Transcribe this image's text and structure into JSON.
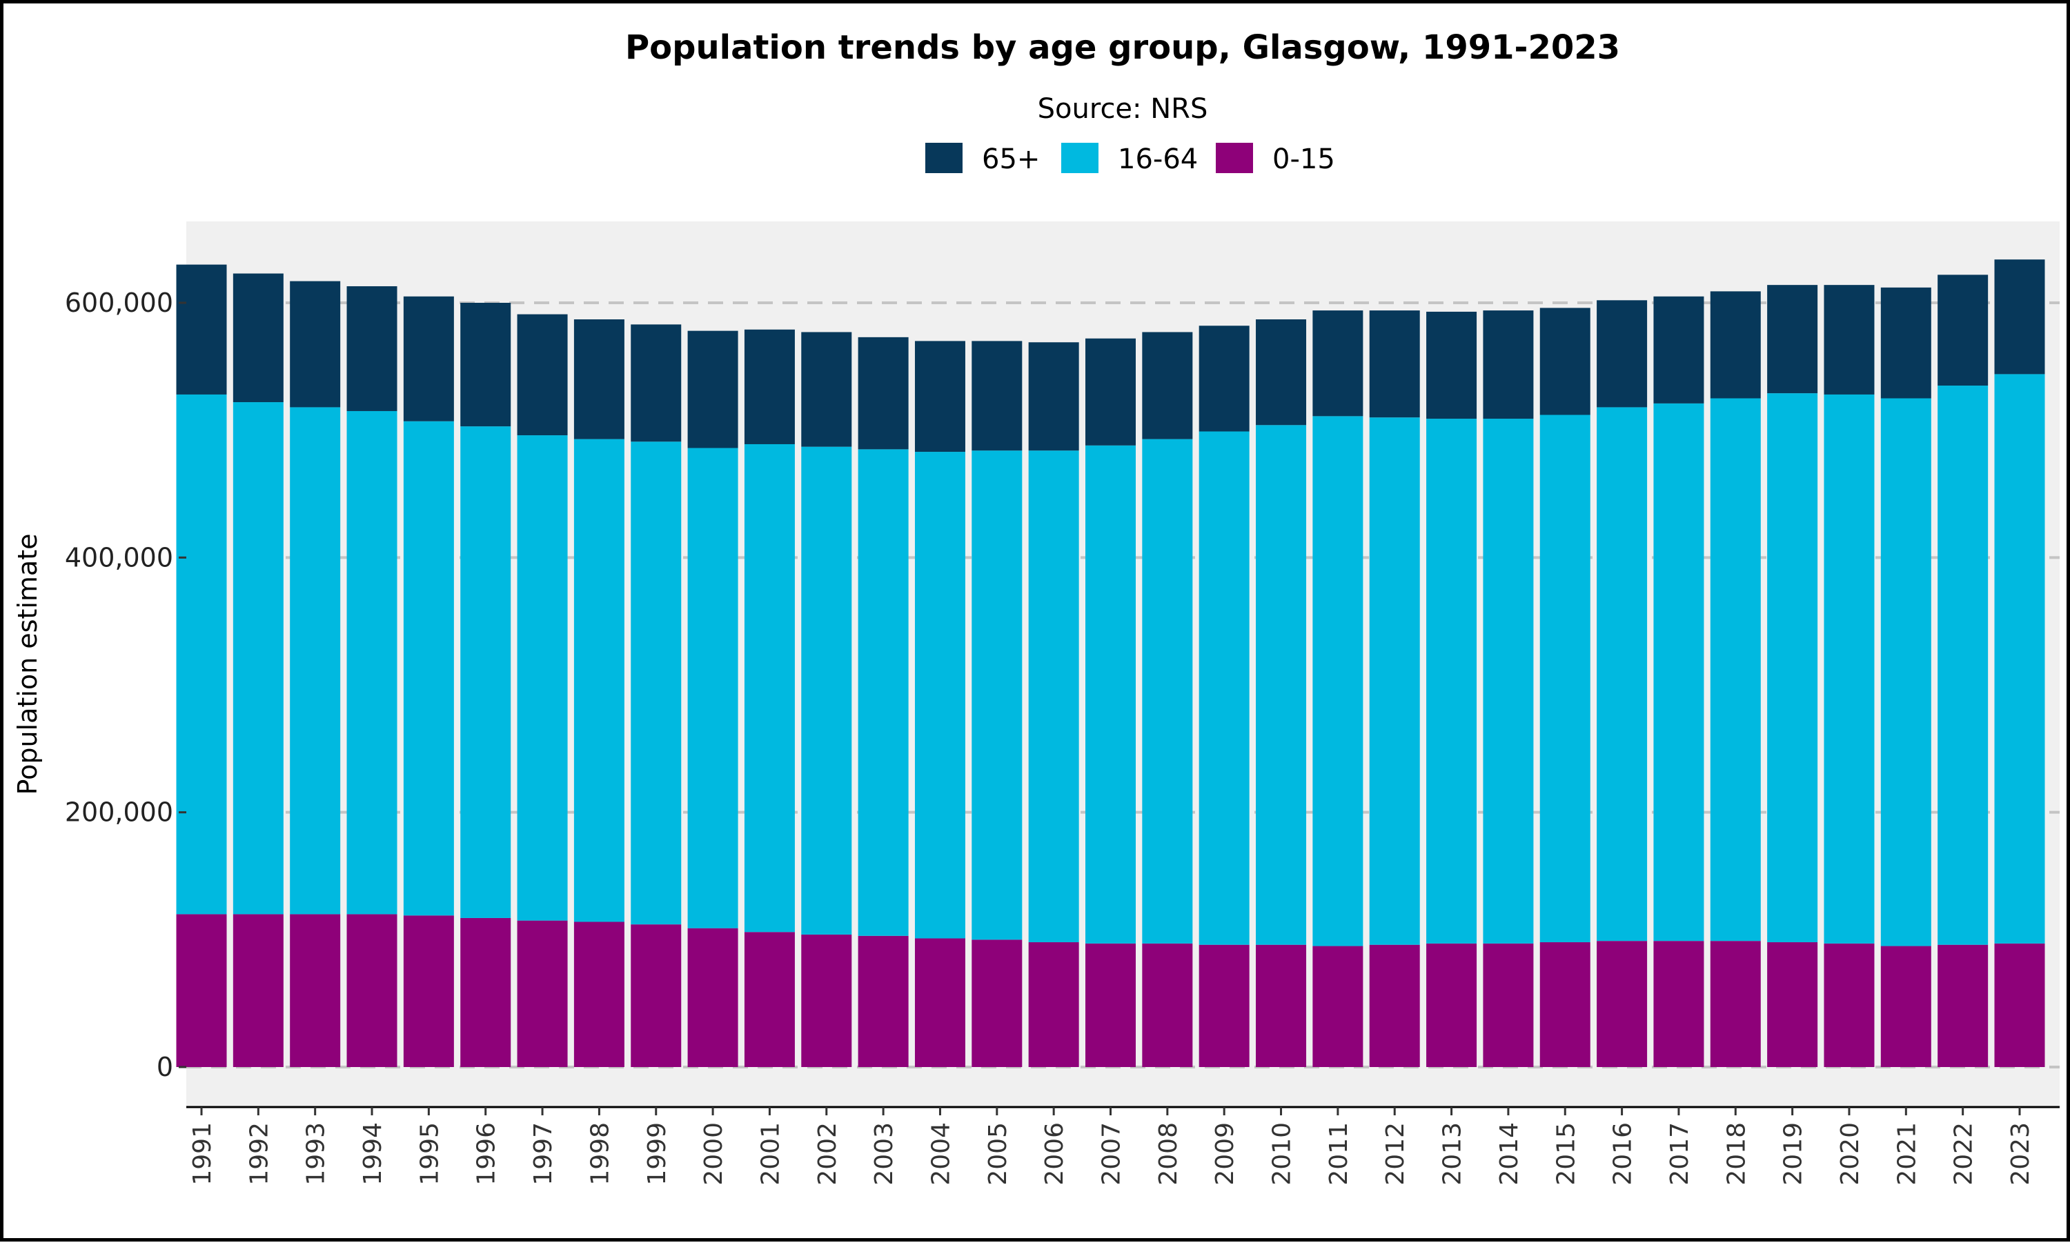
{
  "chart_data": {
    "type": "bar",
    "stacked": true,
    "title": "Population trends by age group, Glasgow, 1991-2023",
    "subtitle": "Source: NRS",
    "xlabel": "",
    "ylabel": "Population estimate",
    "ylim": [
      0,
      660000
    ],
    "yticks": [
      0,
      200000,
      400000,
      600000
    ],
    "ytick_labels": [
      "0",
      "200,000",
      "400,000",
      "600,000"
    ],
    "grid": "horizontal dashed",
    "legend_position": "top",
    "categories": [
      "1991",
      "1992",
      "1993",
      "1994",
      "1995",
      "1996",
      "1997",
      "1998",
      "1999",
      "2000",
      "2001",
      "2002",
      "2003",
      "2004",
      "2005",
      "2006",
      "2007",
      "2008",
      "2009",
      "2010",
      "2011",
      "2012",
      "2013",
      "2014",
      "2015",
      "2016",
      "2017",
      "2018",
      "2019",
      "2020",
      "2021",
      "2022",
      "2023"
    ],
    "series": [
      {
        "name": "0-15",
        "color": "#8E0179",
        "values": [
          120000,
          120000,
          120000,
          120000,
          119000,
          117000,
          115000,
          114000,
          112000,
          109000,
          106000,
          104000,
          103000,
          101000,
          100000,
          98000,
          97000,
          97000,
          96000,
          96000,
          95000,
          96000,
          97000,
          97000,
          98000,
          99000,
          99000,
          99000,
          98000,
          97000,
          95000,
          96000,
          97000
        ]
      },
      {
        "name": "16-64",
        "color": "#00B9E0",
        "values": [
          408000,
          402000,
          398000,
          395000,
          388000,
          386000,
          381000,
          379000,
          379000,
          377000,
          383000,
          383000,
          382000,
          382000,
          384000,
          386000,
          391000,
          396000,
          403000,
          408000,
          416000,
          414000,
          412000,
          412000,
          414000,
          419000,
          422000,
          426000,
          431000,
          431000,
          430000,
          439000,
          447000
        ]
      },
      {
        "name": "65+",
        "color": "#07385A",
        "values": [
          102000,
          101000,
          99000,
          98000,
          98000,
          97000,
          95000,
          94000,
          92000,
          92000,
          90000,
          90000,
          88000,
          87000,
          86000,
          85000,
          84000,
          84000,
          83000,
          83000,
          83000,
          84000,
          84000,
          85000,
          84000,
          84000,
          84000,
          84000,
          85000,
          86000,
          87000,
          87000,
          90000
        ]
      }
    ],
    "legend_order": [
      "65+",
      "16-64",
      "0-15"
    ]
  }
}
